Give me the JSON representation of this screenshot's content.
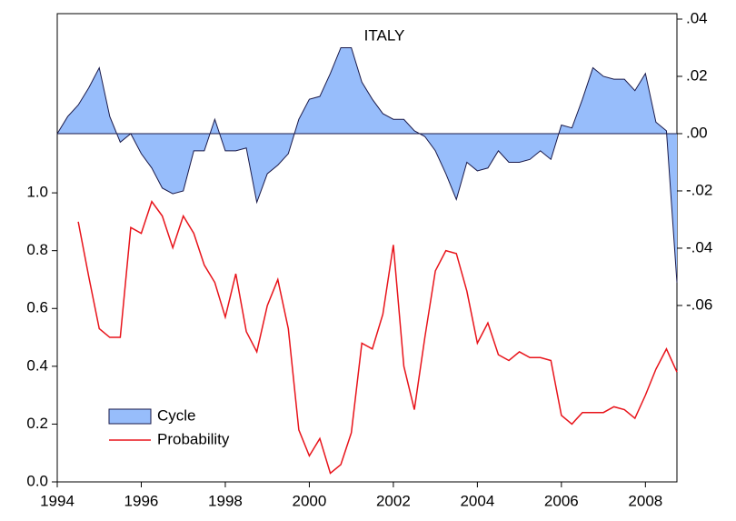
{
  "chart_data": {
    "type": "line",
    "title": "ITALY",
    "x": [
      1994,
      1994.25,
      1994.5,
      1994.75,
      1995,
      1995.25,
      1995.5,
      1995.75,
      1996,
      1996.25,
      1996.5,
      1996.75,
      1997,
      1997.25,
      1997.5,
      1997.75,
      1998,
      1998.25,
      1998.5,
      1998.75,
      1999,
      1999.25,
      1999.5,
      1999.75,
      2000,
      2000.25,
      2000.5,
      2000.75,
      2001,
      2001.25,
      2001.5,
      2001.75,
      2002,
      2002.25,
      2002.5,
      2002.75,
      2003,
      2003.25,
      2003.5,
      2003.75,
      2004,
      2004.25,
      2004.5,
      2004.75,
      2005,
      2005.25,
      2005.5,
      2005.75,
      2006,
      2006.25,
      2006.5,
      2006.75,
      2007,
      2007.25,
      2007.5,
      2007.75,
      2008,
      2008.25,
      2008.5,
      2008.75
    ],
    "xlim": [
      1994,
      2008.75
    ],
    "xticks": [
      1994,
      1996,
      1998,
      2000,
      2002,
      2004,
      2006,
      2008
    ],
    "ylim": [
      0,
      1.62
    ],
    "yticks": [
      {
        "value": 0,
        "label": "0.0"
      },
      0.2,
      0.4,
      0.6,
      0.8,
      {
        "value": 1,
        "label": "1.0"
      }
    ],
    "y2lim": [
      -0.1216,
      0.0419
    ],
    "y2ticks": [
      {
        "value": 0.04,
        "label": ".04"
      },
      {
        "value": 0.02,
        "label": ".02"
      },
      {
        "value": 0,
        "label": ".00"
      },
      {
        "value": -0.02,
        "label": "-.02"
      },
      {
        "value": -0.04,
        "label": "-.04"
      },
      {
        "value": -0.06,
        "label": "-.06"
      }
    ],
    "legend": "lower left",
    "series": [
      {
        "name": "Cycle",
        "kind": "area",
        "axis": "y2",
        "color": "#97bdfb",
        "line_color": "#1a1a4a",
        "values": [
          0,
          0.006,
          0.01,
          0.016,
          0.023,
          0.006,
          -0.003,
          0,
          -0.007,
          -0.012,
          -0.019,
          -0.021,
          -0.02,
          -0.006,
          -0.006,
          0.005,
          -0.006,
          -0.006,
          -0.005,
          -0.024,
          -0.014,
          -0.011,
          -0.007,
          0.005,
          0.012,
          0.013,
          0.021,
          0.03,
          0.03,
          0.018,
          0.012,
          0.007,
          0.005,
          0.005,
          0.001,
          -0.001,
          -0.006,
          -0.014,
          -0.023,
          -0.01,
          -0.013,
          -0.012,
          -0.006,
          -0.01,
          -0.01,
          -0.009,
          -0.006,
          -0.009,
          0.003,
          0.002,
          0.012,
          0.023,
          0.02,
          0.019,
          0.019,
          0.015,
          0.021,
          0.004,
          0.001,
          -0.052
        ]
      },
      {
        "name": "Probability",
        "kind": "line",
        "color": "#e8141b",
        "values": [
          null,
          null,
          0.9,
          0.71,
          0.53,
          0.5,
          0.5,
          0.88,
          0.86,
          0.97,
          0.92,
          0.81,
          0.92,
          0.86,
          0.75,
          0.69,
          0.57,
          0.72,
          0.52,
          0.45,
          0.61,
          0.7,
          0.53,
          0.18,
          0.09,
          0.15,
          0.03,
          0.06,
          0.17,
          0.48,
          0.46,
          0.58,
          0.82,
          0.4,
          0.25,
          0.5,
          0.73,
          0.8,
          0.79,
          0.66,
          0.48,
          0.55,
          0.44,
          0.42,
          0.45,
          0.43,
          0.43,
          0.42,
          0.23,
          0.2,
          0.24,
          0.24,
          0.24,
          0.26,
          0.25,
          0.22,
          0.3,
          0.39,
          0.46,
          0.38
        ]
      }
    ]
  }
}
